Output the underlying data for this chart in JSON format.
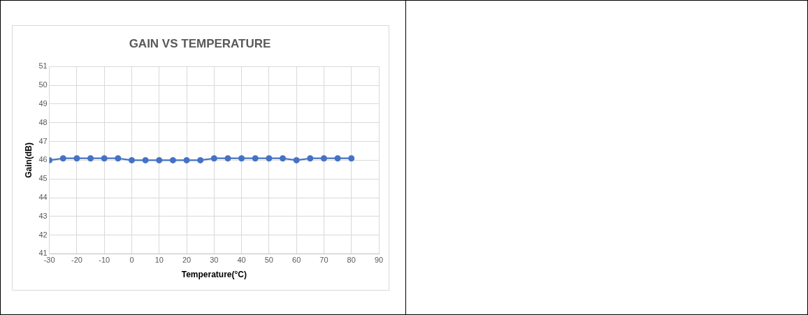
{
  "chart_data": {
    "type": "line",
    "title": "GAIN VS TEMPERATURE",
    "xlabel": "Temperature(°C)",
    "ylabel": "Gain(dB)",
    "x": [
      -30,
      -25,
      -20,
      -15,
      -10,
      -5,
      0,
      5,
      10,
      15,
      20,
      25,
      30,
      35,
      40,
      45,
      50,
      55,
      60,
      65,
      70,
      75,
      80
    ],
    "series": [
      {
        "color": "#4472c4",
        "values": [
          46,
          46.1,
          46.1,
          46.1,
          46.1,
          46.1,
          46,
          46,
          46,
          46,
          46,
          46,
          46.1,
          46.1,
          46.1,
          46.1,
          46.1,
          46.1,
          46,
          46.1,
          46.1,
          46.1,
          46.1
        ]
      }
    ],
    "xlim": [
      -30,
      90
    ],
    "xticks": [
      -30,
      -20,
      -10,
      0,
      10,
      20,
      30,
      40,
      50,
      60,
      70,
      80,
      90
    ],
    "ylim": [
      41,
      51
    ],
    "yticks": [
      41,
      42,
      43,
      44,
      45,
      46,
      47,
      48,
      49,
      50,
      51
    ],
    "grid": true,
    "legend": false,
    "marker": "circle",
    "line_style": "solid"
  }
}
